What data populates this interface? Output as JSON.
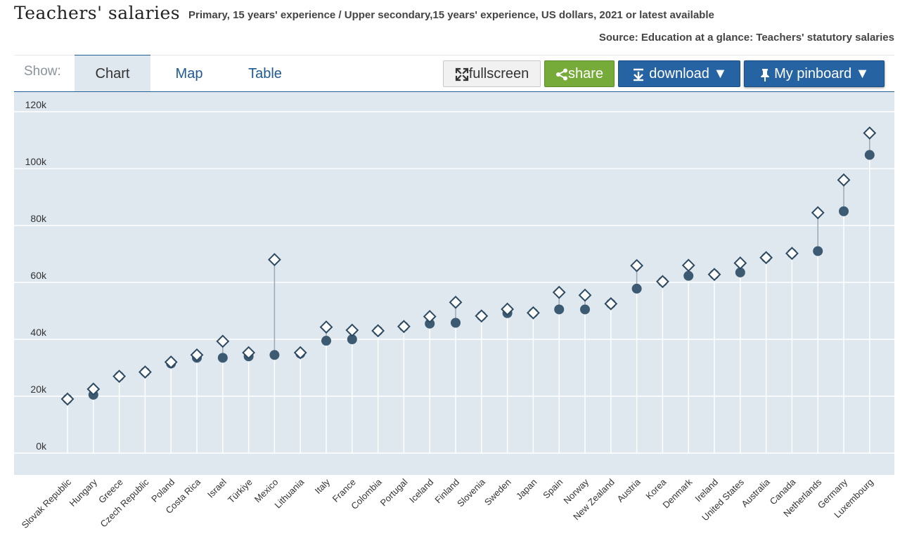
{
  "header": {
    "title": "Teachers' salaries",
    "subtitle": "Primary, 15 years' experience / Upper secondary,15 years' experience, US dollars, 2021 or latest available",
    "source": "Source: Education at a glance: Teachers' statutory salaries"
  },
  "toolbar": {
    "show_label": "Show:",
    "tabs": [
      {
        "label": "Chart",
        "active": true
      },
      {
        "label": "Map",
        "active": false
      },
      {
        "label": "Table",
        "active": false
      }
    ],
    "fullscreen_label": "fullscreen",
    "share_label": "share",
    "download_label": "download ▼",
    "pinboard_label": "My pinboard ▼"
  },
  "colors": {
    "plot_bg": "#dfe7ef",
    "grid": "#ffffff",
    "marker_fill": "#3d5a73",
    "marker_stroke": "#2e4a61",
    "connector": "#9aa9b6",
    "stem": "#ffffff",
    "accent": "#235e94",
    "share_green": "#77ab39"
  },
  "chart_data": {
    "type": "dot-range",
    "title": "",
    "xlabel": "",
    "ylabel": "",
    "ylim": [
      0,
      120000
    ],
    "yticks": [
      0,
      20000,
      40000,
      60000,
      80000,
      100000,
      120000
    ],
    "ytick_labels": [
      "0k",
      "20k",
      "40k",
      "60k",
      "80k",
      "100k",
      "120k"
    ],
    "categories": [
      "Slovak Republic",
      "Hungary",
      "Greece",
      "Czech Republic",
      "Poland",
      "Costa Rica",
      "Israel",
      "Türkiye",
      "Mexico",
      "Lithuania",
      "Italy",
      "France",
      "Colombia",
      "Portugal",
      "Iceland",
      "Finland",
      "Slovenia",
      "Sweden",
      "Japan",
      "Spain",
      "Norway",
      "New Zealand",
      "Austria",
      "Korea",
      "Denmark",
      "Ireland",
      "United States",
      "Australia",
      "Canada",
      "Netherlands",
      "Germany",
      "Luxembourg"
    ],
    "series": [
      {
        "name": "Primary, 15 years' experience",
        "marker": "circle",
        "values": [
          19000,
          20500,
          27000,
          28500,
          31500,
          33500,
          33500,
          34000,
          34500,
          35000,
          39500,
          40000,
          43000,
          44500,
          45500,
          45800,
          48200,
          49200,
          49300,
          50500,
          50500,
          52500,
          57800,
          60300,
          62300,
          62800,
          63500,
          68700,
          70200,
          71000,
          85000,
          104800
        ]
      },
      {
        "name": "Upper secondary, 15 years' experience",
        "marker": "diamond",
        "values": [
          19000,
          22500,
          27000,
          28500,
          32000,
          34500,
          39300,
          35300,
          68000,
          35300,
          44300,
          43200,
          43000,
          44500,
          48000,
          53000,
          48200,
          50600,
          49300,
          56500,
          55500,
          52500,
          65900,
          60300,
          66000,
          62800,
          66800,
          68700,
          70200,
          84500,
          96000,
          112500
        ]
      }
    ]
  }
}
